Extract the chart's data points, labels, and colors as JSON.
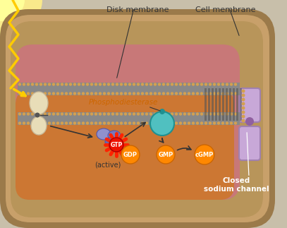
{
  "bg_outer": "#c8bfaa",
  "cell_wall_color": "#9b7a4a",
  "cell_wall_inner": "#b8955a",
  "pink_top": "#c87878",
  "orange_inner": "#cc7733",
  "disk_gray": "#909090",
  "disk_dot": "#d4a050",
  "disk_dot_dark": "#c09040",
  "rhodopsin_color": "#e8ddb8",
  "rhodopsin_edge": "#c8b898",
  "transducin_1": "#9090cc",
  "transducin_2": "#7878bb",
  "transducin_3": "#6868aa",
  "gtp_burst": "#ff2200",
  "gtp_fill": "#ee1100",
  "pde_color": "#50c0c0",
  "pde_edge": "#209090",
  "gdp_fill": "#ff8800",
  "gmp_fill": "#ff8800",
  "cgmp_fill": "#ff8800",
  "label_fill": "#ff8800",
  "channel_color": "#c8a8d8",
  "channel_edge": "#a080b0",
  "light_yellow": "#ffcc00",
  "arrow_dark": "#333333",
  "text_dark": "#333333",
  "text_label_color": "#cc6600",
  "phospho_color": "#cc6600",
  "title_disk": "Disk membrane",
  "title_cell": "Cell membrane",
  "label_phospho": "Phosphodiesterase",
  "label_active": "(active)",
  "label_gdp": "GDP",
  "label_gmp": "GMP",
  "label_cgmp": "cGMP",
  "label_gtp": "GTP",
  "label_channel": "Closed\nsodium channel",
  "figsize": [
    4.07,
    3.23
  ],
  "dpi": 100
}
